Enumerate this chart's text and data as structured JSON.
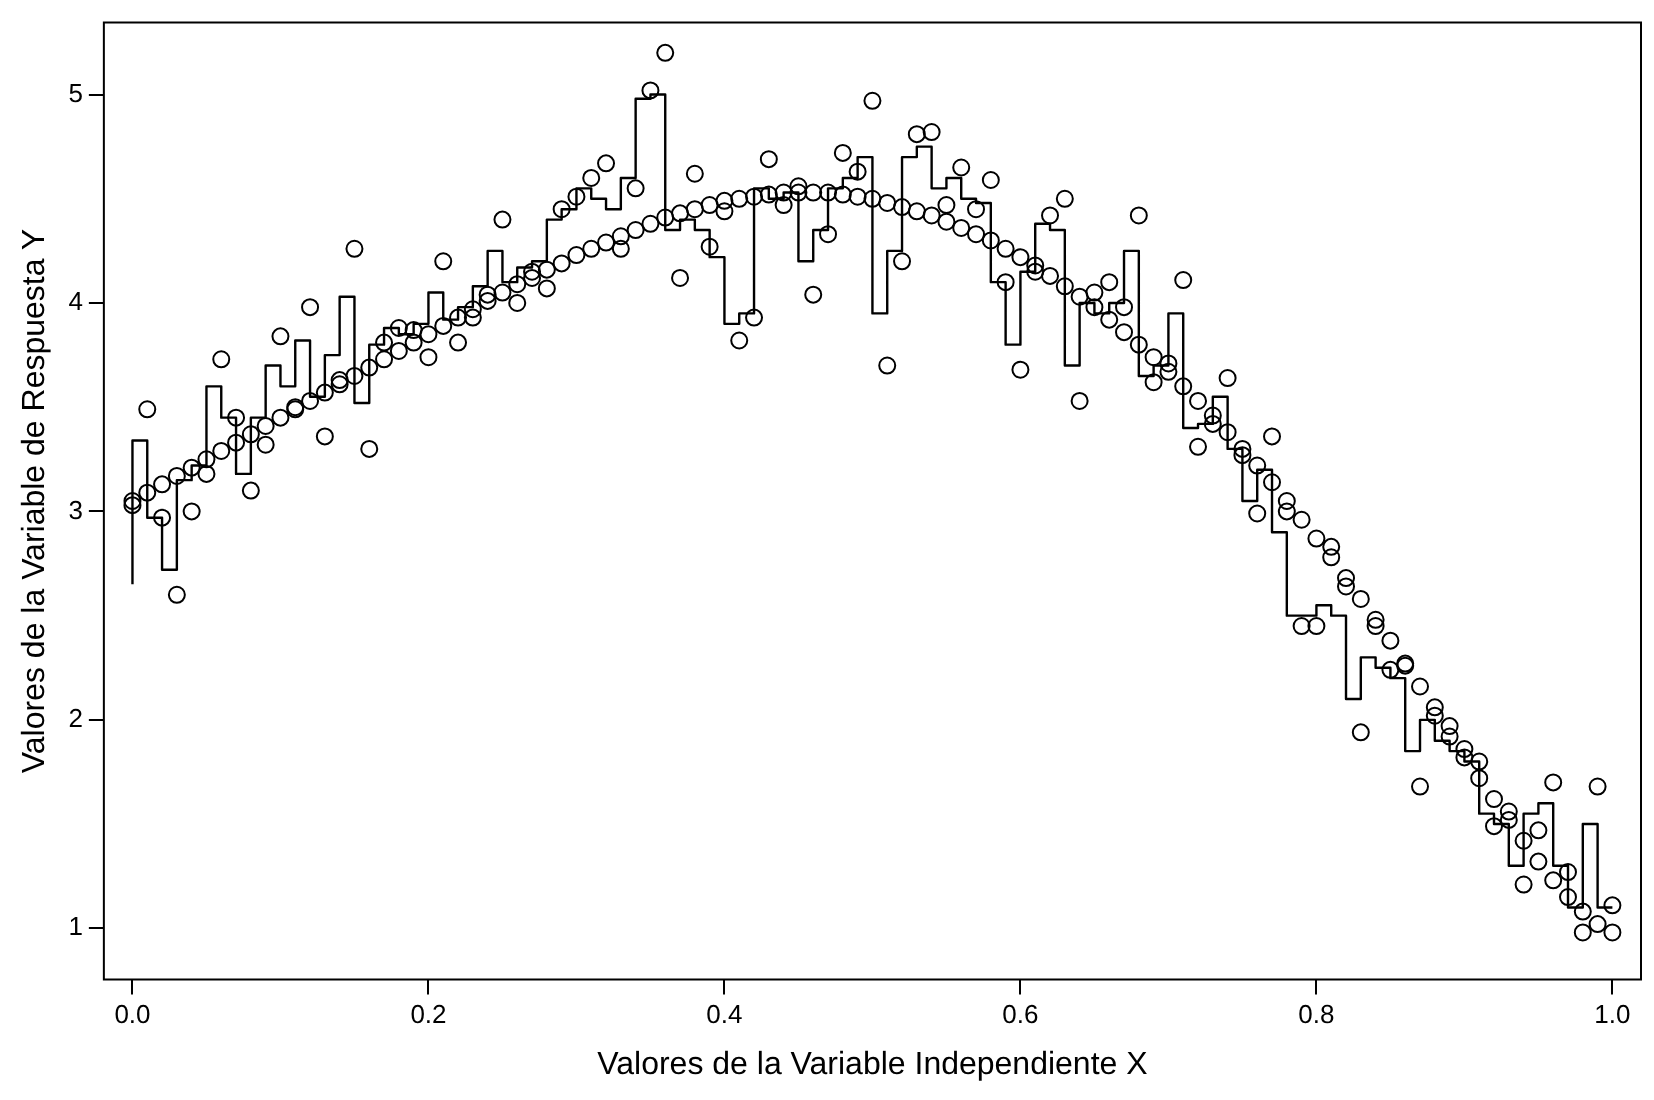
{
  "chart_data": {
    "type": "scatter",
    "xlabel": "Valores de la Variable Independiente X",
    "ylabel": "Valores de la Variable de Respuesta Y",
    "xlim": [
      -0.02,
      1.02
    ],
    "ylim": [
      0.75,
      5.35
    ],
    "xticks": [
      {
        "value": 0,
        "label": "0.0"
      },
      {
        "value": 0.2,
        "label": "0.2"
      },
      {
        "value": 0.4,
        "label": "0.4"
      },
      {
        "value": 0.6,
        "label": "0.6"
      },
      {
        "value": 0.8,
        "label": "0.8"
      },
      {
        "value": 1,
        "label": "1.0"
      }
    ],
    "yticks": [
      1,
      2,
      3,
      4,
      5
    ],
    "grid": false,
    "legend": false,
    "x": [
      0,
      0.01,
      0.02,
      0.03,
      0.04,
      0.05,
      0.06,
      0.07,
      0.08,
      0.09,
      0.1,
      0.11,
      0.12,
      0.13,
      0.14,
      0.15,
      0.16,
      0.17,
      0.18,
      0.19,
      0.2,
      0.21,
      0.22,
      0.23,
      0.24,
      0.25,
      0.26,
      0.27,
      0.28,
      0.29,
      0.3,
      0.31,
      0.32,
      0.33,
      0.34,
      0.35,
      0.36,
      0.37,
      0.38,
      0.39,
      0.4,
      0.41,
      0.42,
      0.43,
      0.44,
      0.45,
      0.46,
      0.47,
      0.48,
      0.49,
      0.5,
      0.51,
      0.52,
      0.53,
      0.54,
      0.55,
      0.56,
      0.57,
      0.58,
      0.59,
      0.6,
      0.61,
      0.62,
      0.63,
      0.64,
      0.65,
      0.66,
      0.67,
      0.68,
      0.69,
      0.7,
      0.71,
      0.72,
      0.73,
      0.74,
      0.75,
      0.76,
      0.77,
      0.78,
      0.79,
      0.8,
      0.81,
      0.82,
      0.83,
      0.84,
      0.85,
      0.86,
      0.87,
      0.88,
      0.89,
      0.9,
      0.91,
      0.92,
      0.93,
      0.94,
      0.95,
      0.96,
      0.97,
      0.98,
      0.99,
      1
    ],
    "series": [
      {
        "type": "scatter",
        "marker": "circle",
        "color": "#000000",
        "values": [
          3.03,
          3.49,
          2.97,
          2.6,
          3.0,
          3.18,
          3.73,
          3.45,
          3.1,
          3.32,
          3.84,
          3.5,
          3.98,
          3.36,
          3.63,
          4.26,
          3.3,
          3.81,
          3.88,
          3.87,
          3.74,
          4.2,
          3.81,
          3.93,
          4.04,
          4.4,
          4.0,
          4.15,
          4.07,
          4.45,
          4.51,
          4.6,
          4.67,
          4.26,
          4.55,
          5.02,
          5.2,
          4.12,
          4.62,
          4.27,
          4.44,
          3.82,
          3.93,
          4.69,
          4.47,
          4.56,
          4.04,
          4.33,
          4.72,
          4.63,
          4.97,
          3.7,
          4.2,
          4.81,
          4.82,
          4.47,
          4.65,
          4.45,
          4.59,
          4.1,
          3.68,
          4.15,
          4.42,
          4.5,
          3.53,
          4.05,
          4.1,
          3.98,
          4.42,
          3.62,
          3.71,
          4.11,
          3.31,
          3.42,
          3.64,
          3.27,
          2.99,
          3.36,
          3.0,
          2.45,
          2.45,
          2.83,
          2.64,
          1.94,
          2.45,
          2.24,
          2.26,
          1.68,
          2.06,
          1.97,
          1.86,
          1.8,
          1.49,
          1.56,
          1.21,
          1.47,
          1.7,
          1.27,
          0.98,
          1.68,
          1.11
        ]
      },
      {
        "type": "scatter",
        "marker": "circle",
        "color": "#000000",
        "values": [
          3.05,
          3.09,
          3.13,
          3.17,
          3.21,
          3.25,
          3.29,
          3.33,
          3.37,
          3.41,
          3.45,
          3.49,
          3.53,
          3.57,
          3.61,
          3.65,
          3.69,
          3.73,
          3.77,
          3.81,
          3.85,
          3.89,
          3.93,
          3.97,
          4.01,
          4.05,
          4.09,
          4.12,
          4.16,
          4.19,
          4.23,
          4.26,
          4.29,
          4.32,
          4.35,
          4.38,
          4.41,
          4.43,
          4.45,
          4.47,
          4.49,
          4.5,
          4.51,
          4.52,
          4.53,
          4.53,
          4.53,
          4.53,
          4.52,
          4.51,
          4.5,
          4.48,
          4.46,
          4.44,
          4.42,
          4.39,
          4.36,
          4.33,
          4.3,
          4.26,
          4.22,
          4.18,
          4.13,
          4.08,
          4.03,
          3.98,
          3.92,
          3.86,
          3.8,
          3.74,
          3.67,
          3.6,
          3.53,
          3.46,
          3.38,
          3.3,
          3.22,
          3.14,
          3.05,
          2.96,
          2.87,
          2.78,
          2.68,
          2.58,
          2.48,
          2.38,
          2.27,
          2.16,
          2.02,
          1.92,
          1.82,
          1.72,
          1.62,
          1.52,
          1.42,
          1.32,
          1.23,
          1.15,
          1.08,
          1.02,
          0.98
        ]
      },
      {
        "type": "step",
        "marker": "none",
        "color": "#000000",
        "values": [
          2.65,
          3.34,
          2.97,
          2.72,
          3.15,
          3.22,
          3.6,
          3.45,
          3.18,
          3.45,
          3.7,
          3.6,
          3.82,
          3.55,
          3.75,
          4.03,
          3.52,
          3.8,
          3.88,
          3.85,
          3.9,
          4.05,
          3.92,
          3.98,
          4.08,
          4.25,
          4.1,
          4.17,
          4.2,
          4.4,
          4.45,
          4.55,
          4.5,
          4.45,
          4.6,
          4.98,
          5.0,
          4.35,
          4.4,
          4.35,
          4.22,
          3.9,
          3.95,
          4.55,
          4.5,
          4.53,
          4.2,
          4.35,
          4.55,
          4.6,
          4.7,
          3.95,
          4.25,
          4.7,
          4.75,
          4.55,
          4.6,
          4.5,
          4.48,
          4.1,
          3.8,
          4.15,
          4.38,
          4.35,
          3.7,
          4.0,
          3.95,
          4.0,
          4.25,
          3.65,
          3.7,
          3.95,
          3.4,
          3.42,
          3.55,
          3.3,
          3.05,
          3.2,
          2.9,
          2.5,
          2.5,
          2.55,
          2.5,
          2.1,
          2.3,
          2.25,
          2.2,
          1.85,
          2.0,
          1.9,
          1.85,
          1.8,
          1.55,
          1.5,
          1.3,
          1.55,
          1.6,
          1.3,
          1.1,
          1.5,
          1.1
        ]
      }
    ]
  }
}
